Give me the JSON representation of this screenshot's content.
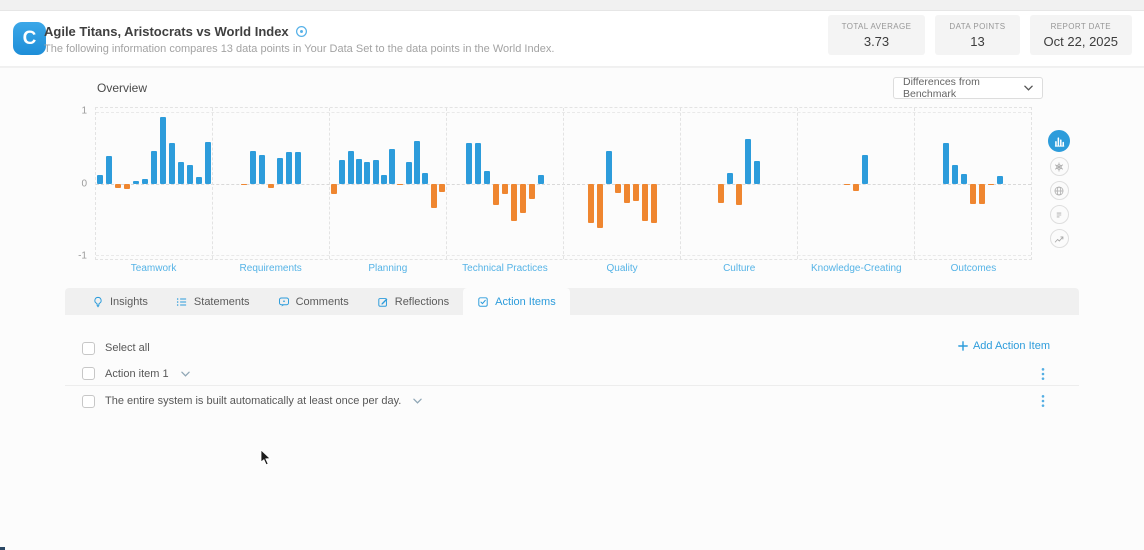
{
  "header": {
    "logo_letter": "C",
    "title": "Agile Titans, Aristocrats vs World Index",
    "subtitle": "The following information compares 13 data points in Your Data Set to the data points in the World Index.",
    "stats": [
      {
        "label": "TOTAL AVERAGE",
        "value": "3.73"
      },
      {
        "label": "DATA POINTS",
        "value": "13"
      },
      {
        "label": "REPORT DATE",
        "value": "Oct 22, 2025"
      }
    ]
  },
  "overview": {
    "title": "Overview",
    "benchmark_dropdown_value": "Differences from Benchmark"
  },
  "chart_data": {
    "type": "bar",
    "title": "Overview",
    "ylabel": "",
    "ylim": [
      -1.06,
      1.06
    ],
    "yticks": [
      1,
      0,
      -1
    ],
    "grid": true,
    "legend": false,
    "positive_color": "#2d9cdb",
    "negative_color": "#ef8630",
    "categories": [
      {
        "label": "Teamwork",
        "values": [
          0.12,
          0.38,
          -0.07,
          -0.08,
          0.04,
          0.06,
          0.45,
          0.93,
          0.57,
          0.3,
          0.26,
          0.09,
          0.58
        ]
      },
      {
        "label": "Requirements",
        "values": [
          -0.02,
          0.45,
          0.4,
          -0.06,
          0.36,
          0.44,
          0.44
        ]
      },
      {
        "label": "Planning",
        "values": [
          -0.15,
          0.33,
          0.45,
          0.35,
          0.3,
          0.33,
          0.12,
          0.48,
          -0.02,
          0.3,
          0.6,
          0.15,
          -0.35,
          -0.12
        ]
      },
      {
        "label": "Technical Practices",
        "values": [
          0.57,
          0.57,
          0.18,
          -0.3,
          -0.15,
          -0.52,
          -0.42,
          -0.22,
          0.12
        ]
      },
      {
        "label": "Quality",
        "values": [
          -0.55,
          -0.63,
          0.45,
          -0.13,
          -0.28,
          -0.25,
          -0.52,
          -0.55
        ]
      },
      {
        "label": "Culture",
        "values": [
          -0.27,
          0.15,
          -0.3,
          0.62,
          0.32
        ]
      },
      {
        "label": "Knowledge-Creating",
        "values": [
          -0.02,
          -0.1,
          0.4
        ]
      },
      {
        "label": "Outcomes",
        "values": [
          0.57,
          0.26,
          0.13,
          -0.29,
          -0.29,
          -0.02,
          0.11
        ]
      }
    ]
  },
  "view_switcher": [
    {
      "icon": "bar-chart-icon",
      "active": true
    },
    {
      "icon": "radar-chart-icon",
      "active": false
    },
    {
      "icon": "globe-icon",
      "active": false
    },
    {
      "icon": "distribution-icon",
      "active": false
    },
    {
      "icon": "trend-icon",
      "active": false
    }
  ],
  "tabs": [
    {
      "label": "Insights",
      "icon": "lightbulb-icon",
      "active": false
    },
    {
      "label": "Statements",
      "icon": "list-icon",
      "active": false
    },
    {
      "label": "Comments",
      "icon": "comment-icon",
      "active": false
    },
    {
      "label": "Reflections",
      "icon": "edit-icon",
      "active": false
    },
    {
      "label": "Action Items",
      "icon": "checkbox-icon",
      "active": true
    }
  ],
  "action_items": {
    "select_all_label": "Select all",
    "add_button_label": "Add Action Item",
    "items": [
      {
        "label": "Action item 1"
      },
      {
        "label": "The entire system is built automatically at least once per day."
      }
    ]
  },
  "colors": {
    "accent_blue": "#2d9cdb",
    "category_label_blue": "#55b3e6",
    "bar_orange": "#ef8630"
  }
}
